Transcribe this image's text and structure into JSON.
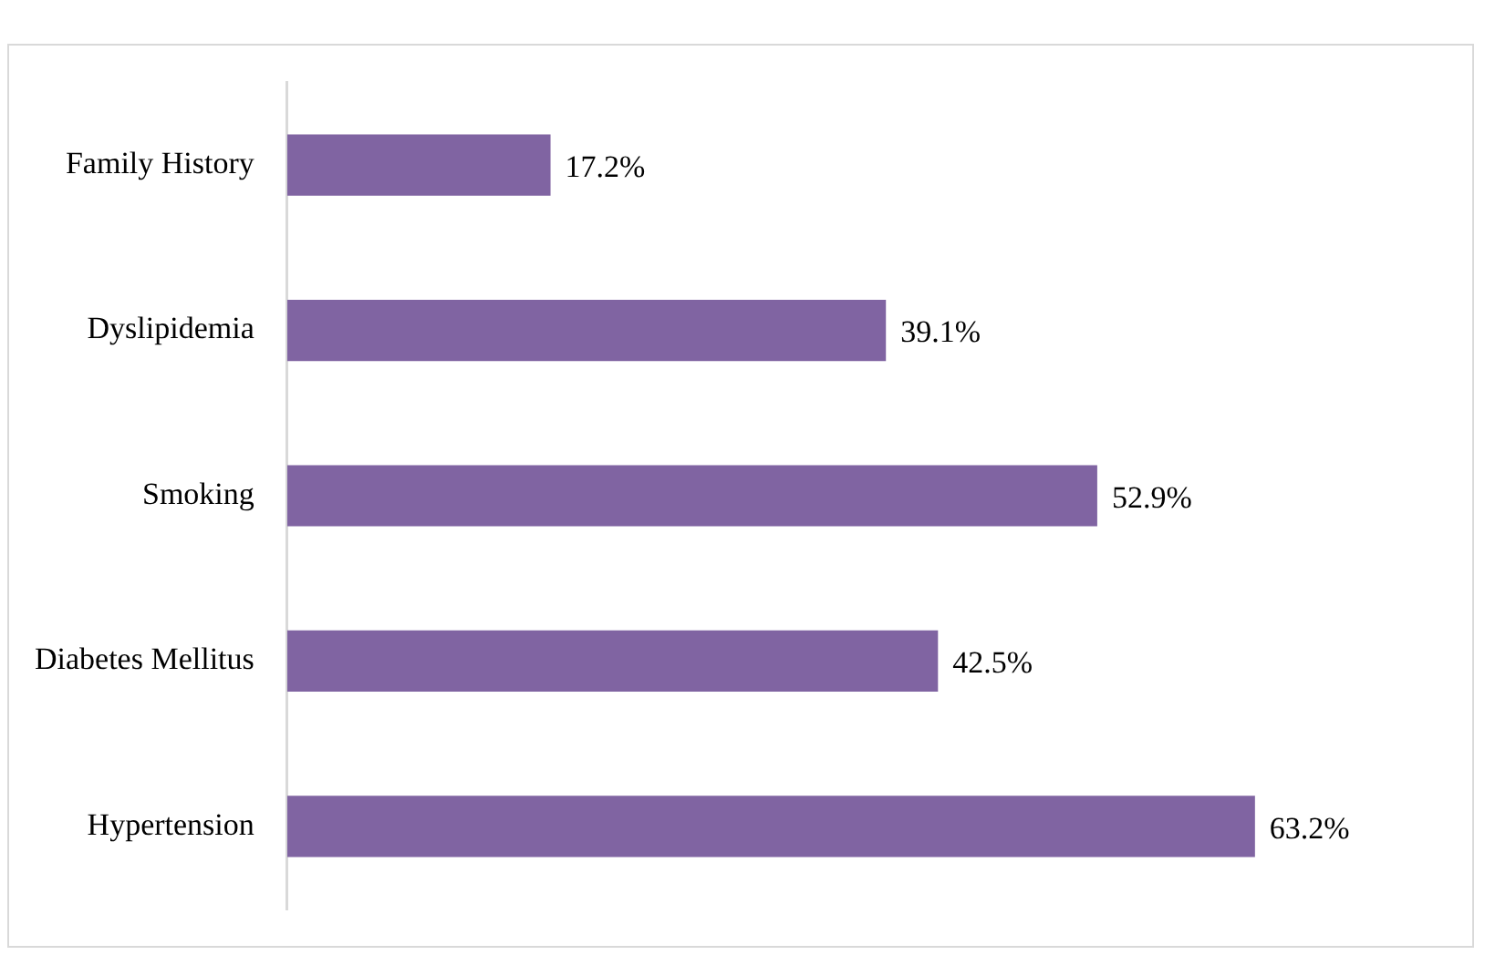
{
  "chart_data": {
    "type": "bar",
    "orientation": "horizontal",
    "categories": [
      "Family History",
      "Dyslipidemia",
      "Smoking",
      "Diabetes Mellitus",
      "Hypertension"
    ],
    "values": [
      17.2,
      39.1,
      52.9,
      42.5,
      63.2
    ],
    "value_labels": [
      "17.2%",
      "39.1%",
      "52.9%",
      "42.5%",
      "63.2%"
    ],
    "color": "#8064a2",
    "legend": false,
    "tick_labels": "y"
  }
}
